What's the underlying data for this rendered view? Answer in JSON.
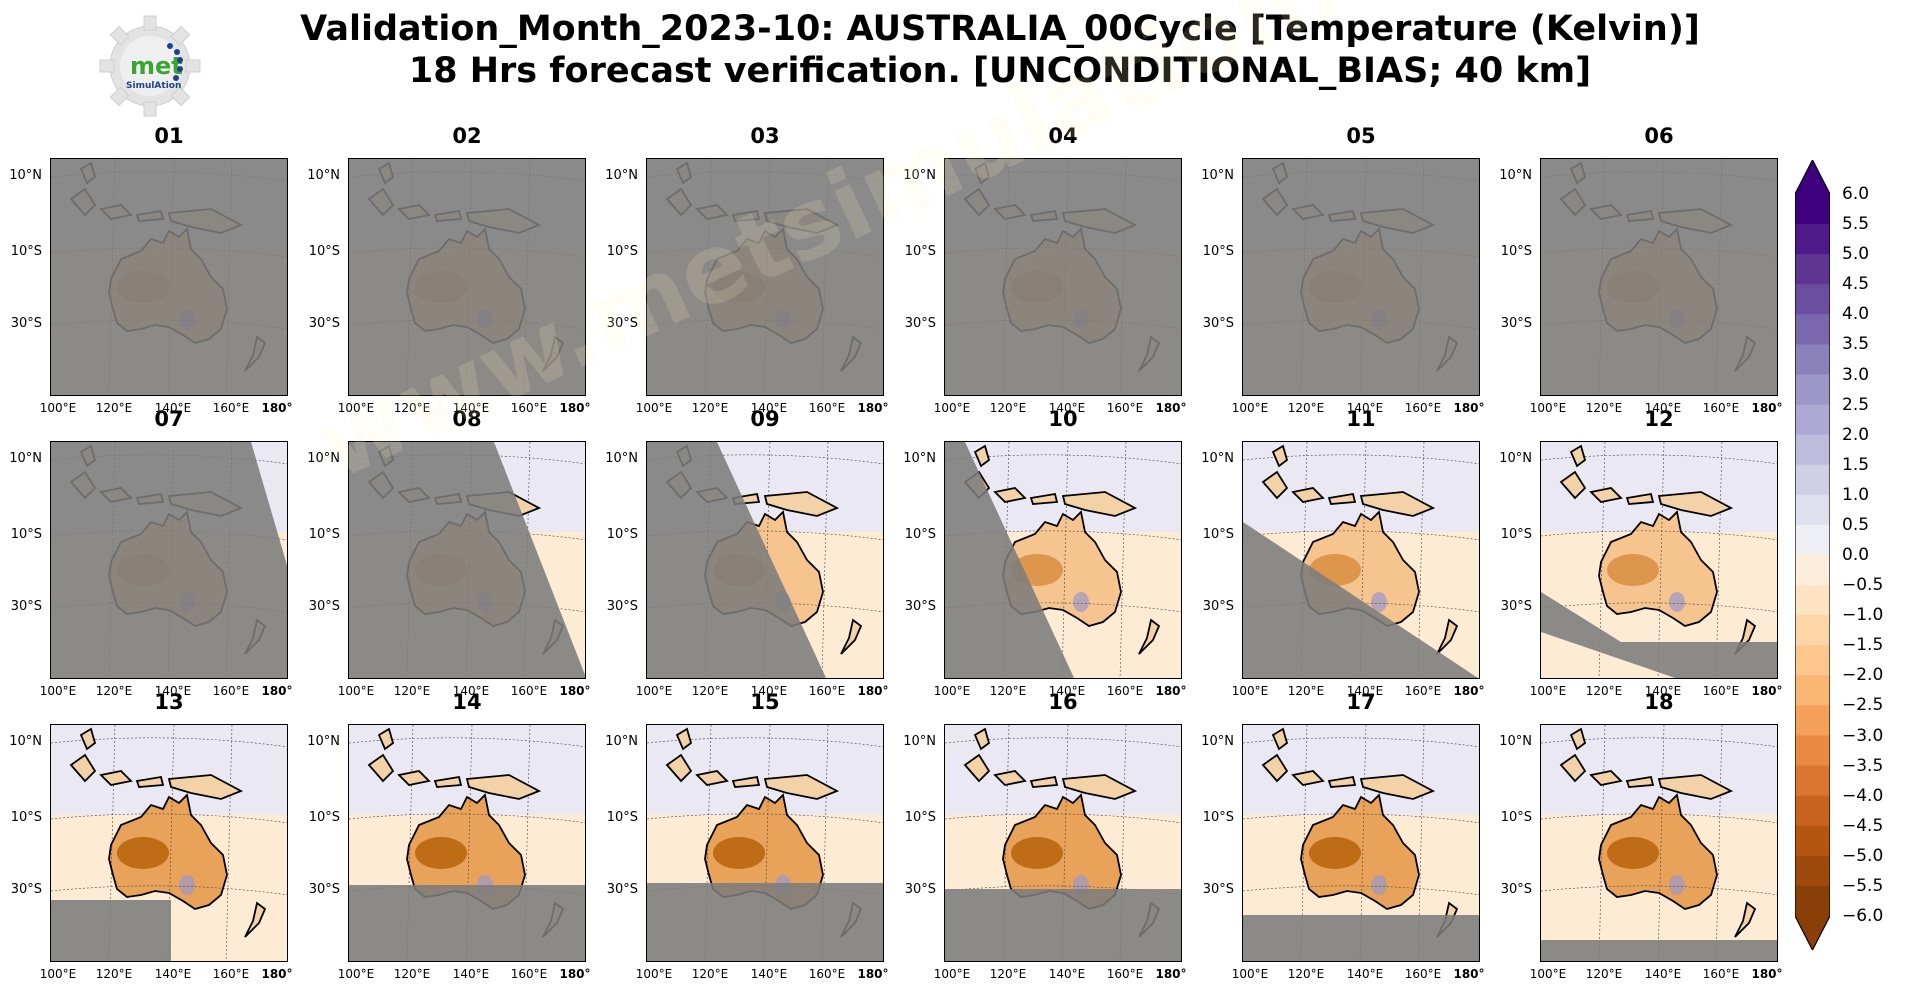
{
  "title": {
    "line1": "Validation_Month_2023-10: AUSTRALIA_00Cycle [Temperature (Kelvin)]",
    "line2": "18 Hrs forecast verification. [UNCONDITIONAL_BIAS; 40 km]"
  },
  "logo": {
    "text_main": "met",
    "text_sub": "SimulAtion"
  },
  "watermark": "www.metsimulation.com",
  "colors": {
    "masked_gray": "#7c7c7c",
    "warm_bias": "#b45f06",
    "cold_bias": "#5e3c99",
    "neutral": "#f7f7f7"
  },
  "chart_data": {
    "type": "heatmap",
    "panels": [
      "01",
      "02",
      "03",
      "04",
      "05",
      "06",
      "07",
      "08",
      "09",
      "10",
      "11",
      "12",
      "13",
      "14",
      "15",
      "16",
      "17",
      "18"
    ],
    "x_tick_labels": [
      "100°E",
      "120°E",
      "140°E",
      "160°E",
      "180°"
    ],
    "y_tick_labels": [
      "10°N",
      "10°S",
      "30°S"
    ],
    "colorbar": {
      "label_values": [
        "6.0",
        "5.5",
        "5.0",
        "4.5",
        "4.0",
        "3.5",
        "3.0",
        "2.5",
        "2.0",
        "1.5",
        "1.0",
        "0.5",
        "0.0",
        "−0.5",
        "−1.0",
        "−1.5",
        "−2.0",
        "−2.5",
        "−3.0",
        "−3.5",
        "−4.0",
        "−4.5",
        "−5.0",
        "−5.5",
        "−6.0"
      ],
      "range": [
        -6.0,
        6.0
      ],
      "extend": "both",
      "colors": [
        "#3f007d",
        "#4e1a89",
        "#5e3592",
        "#6b4ea0",
        "#7a68ad",
        "#8a80ba",
        "#9c97c7",
        "#ada9d3",
        "#bebcdc",
        "#cfcfe6",
        "#dfe0ee",
        "#eeeef5",
        "#f7f7f7",
        "#fdeedb",
        "#fde3c2",
        "#fdd5a7",
        "#fcc78d",
        "#fbb574",
        "#f5a05a",
        "#ea8a42",
        "#dc7530",
        "#c8621e",
        "#b45512",
        "#9d4a0c",
        "#8a3f08"
      ]
    }
  }
}
